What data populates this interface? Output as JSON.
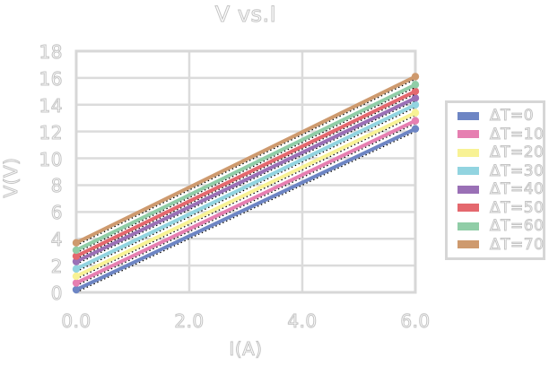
{
  "chart_data": {
    "type": "line",
    "title": "V vs.I",
    "xlabel": "I(A)",
    "ylabel": "V(V)",
    "xlim": [
      0,
      6
    ],
    "ylim": [
      0,
      18
    ],
    "grid": true,
    "legend_position": "right-outside",
    "x_tick_values": [
      0,
      2,
      4,
      6
    ],
    "x_tick_labels": [
      "0.0",
      "2.0",
      "4.0",
      "6.0"
    ],
    "y_tick_values": [
      0,
      2,
      4,
      6,
      8,
      10,
      12,
      14,
      16,
      18
    ],
    "y_tick_labels": [
      "0",
      "2",
      "4",
      "6",
      "8",
      "10",
      "12",
      "14",
      "16",
      "18"
    ],
    "x": [
      0,
      6
    ],
    "series": [
      {
        "name": "ΔT=0",
        "color": "#6d85c4",
        "values": [
          0.2,
          12.2
        ]
      },
      {
        "name": "ΔT=10",
        "color": "#e67fb1",
        "values": [
          0.7,
          12.8
        ]
      },
      {
        "name": "ΔT=20",
        "color": "#f8f295",
        "values": [
          1.2,
          13.4
        ]
      },
      {
        "name": "ΔT=30",
        "color": "#92d4e0",
        "values": [
          1.75,
          14.0
        ]
      },
      {
        "name": "ΔT=40",
        "color": "#9a70b6",
        "values": [
          2.3,
          14.5
        ]
      },
      {
        "name": "ΔT=50",
        "color": "#e4686e",
        "values": [
          2.7,
          15.0
        ]
      },
      {
        "name": "ΔT=60",
        "color": "#90cda7",
        "values": [
          3.15,
          15.5
        ]
      },
      {
        "name": "ΔT=70",
        "color": "#ce9a6e",
        "values": [
          3.7,
          16.1
        ]
      }
    ],
    "trendlines": {
      "style": "dotted",
      "color": "#000000"
    },
    "colors": {
      "gridline": "#dbdbdb",
      "plot_border": "#d7d7d7",
      "text_outline": "#c4c4c4"
    }
  }
}
